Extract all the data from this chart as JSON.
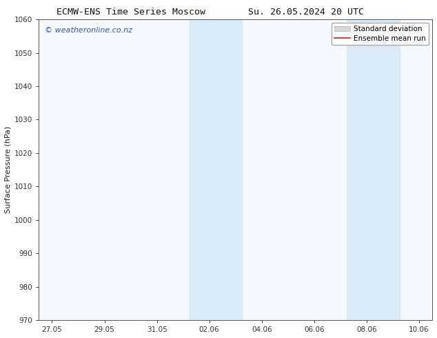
{
  "title_left": "ECMW-ENS Time Series Moscow",
  "title_right": "Su. 26.05.2024 20 UTC",
  "ylabel": "Surface Pressure (hPa)",
  "ylim": [
    970,
    1060
  ],
  "yticks": [
    970,
    980,
    990,
    1000,
    1010,
    1020,
    1030,
    1040,
    1050,
    1060
  ],
  "xtick_labels": [
    "27.05",
    "29.05",
    "31.05",
    "02.06",
    "04.06",
    "06.06",
    "08.06",
    "10.06"
  ],
  "xtick_positions": [
    0,
    2,
    4,
    6,
    8,
    10,
    12,
    14
  ],
  "shade_regions": [
    {
      "x_start": 5.25,
      "x_end": 7.25
    },
    {
      "x_start": 11.25,
      "x_end": 13.25
    }
  ],
  "shade_color": "#daeaf7",
  "background_color": "#ffffff",
  "plot_bg_color": "#f5f9fd",
  "watermark_text": "© weatheronline.co.nz",
  "watermark_color": "#3355bb",
  "legend_std_label": "Standard deviation",
  "legend_ens_label": "Ensemble mean run",
  "legend_std_facecolor": "#d8d8d8",
  "legend_std_edgecolor": "#aaaaaa",
  "legend_ens_color": "#cc2200",
  "title_fontsize": 9.5,
  "axis_label_fontsize": 8,
  "tick_fontsize": 7.5,
  "watermark_fontsize": 8,
  "legend_fontsize": 7.5,
  "xmin": -0.5,
  "xmax": 14.5,
  "spine_color": "#555555",
  "tick_color": "#333333"
}
